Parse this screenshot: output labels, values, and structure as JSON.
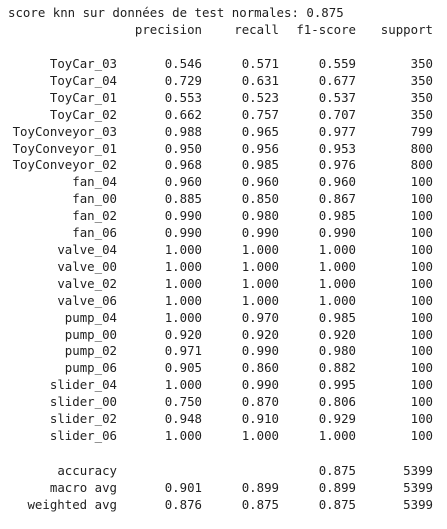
{
  "title": "score knn sur données de test normales: 0.875",
  "headers": {
    "precision": "precision",
    "recall": "recall",
    "f1": "f1-score",
    "support": "support"
  },
  "rows": [
    {
      "label": "ToyCar_03",
      "precision": "0.546",
      "recall": "0.571",
      "f1": "0.559",
      "support": "350"
    },
    {
      "label": "ToyCar_04",
      "precision": "0.729",
      "recall": "0.631",
      "f1": "0.677",
      "support": "350"
    },
    {
      "label": "ToyCar_01",
      "precision": "0.553",
      "recall": "0.523",
      "f1": "0.537",
      "support": "350"
    },
    {
      "label": "ToyCar_02",
      "precision": "0.662",
      "recall": "0.757",
      "f1": "0.707",
      "support": "350"
    },
    {
      "label": "ToyConveyor_03",
      "precision": "0.988",
      "recall": "0.965",
      "f1": "0.977",
      "support": "799"
    },
    {
      "label": "ToyConveyor_01",
      "precision": "0.950",
      "recall": "0.956",
      "f1": "0.953",
      "support": "800"
    },
    {
      "label": "ToyConveyor_02",
      "precision": "0.968",
      "recall": "0.985",
      "f1": "0.976",
      "support": "800"
    },
    {
      "label": "fan_04",
      "precision": "0.960",
      "recall": "0.960",
      "f1": "0.960",
      "support": "100"
    },
    {
      "label": "fan_00",
      "precision": "0.885",
      "recall": "0.850",
      "f1": "0.867",
      "support": "100"
    },
    {
      "label": "fan_02",
      "precision": "0.990",
      "recall": "0.980",
      "f1": "0.985",
      "support": "100"
    },
    {
      "label": "fan_06",
      "precision": "0.990",
      "recall": "0.990",
      "f1": "0.990",
      "support": "100"
    },
    {
      "label": "valve_04",
      "precision": "1.000",
      "recall": "1.000",
      "f1": "1.000",
      "support": "100"
    },
    {
      "label": "valve_00",
      "precision": "1.000",
      "recall": "1.000",
      "f1": "1.000",
      "support": "100"
    },
    {
      "label": "valve_02",
      "precision": "1.000",
      "recall": "1.000",
      "f1": "1.000",
      "support": "100"
    },
    {
      "label": "valve_06",
      "precision": "1.000",
      "recall": "1.000",
      "f1": "1.000",
      "support": "100"
    },
    {
      "label": "pump_04",
      "precision": "1.000",
      "recall": "0.970",
      "f1": "0.985",
      "support": "100"
    },
    {
      "label": "pump_00",
      "precision": "0.920",
      "recall": "0.920",
      "f1": "0.920",
      "support": "100"
    },
    {
      "label": "pump_02",
      "precision": "0.971",
      "recall": "0.990",
      "f1": "0.980",
      "support": "100"
    },
    {
      "label": "pump_06",
      "precision": "0.905",
      "recall": "0.860",
      "f1": "0.882",
      "support": "100"
    },
    {
      "label": "slider_04",
      "precision": "1.000",
      "recall": "0.990",
      "f1": "0.995",
      "support": "100"
    },
    {
      "label": "slider_00",
      "precision": "0.750",
      "recall": "0.870",
      "f1": "0.806",
      "support": "100"
    },
    {
      "label": "slider_02",
      "precision": "0.948",
      "recall": "0.910",
      "f1": "0.929",
      "support": "100"
    },
    {
      "label": "slider_06",
      "precision": "1.000",
      "recall": "1.000",
      "f1": "1.000",
      "support": "100"
    }
  ],
  "summary": [
    {
      "label": "accuracy",
      "precision": "",
      "recall": "",
      "f1": "0.875",
      "support": "5399"
    },
    {
      "label": "macro avg",
      "precision": "0.901",
      "recall": "0.899",
      "f1": "0.899",
      "support": "5399"
    },
    {
      "label": "weighted avg",
      "precision": "0.876",
      "recall": "0.875",
      "f1": "0.875",
      "support": "5399"
    }
  ]
}
